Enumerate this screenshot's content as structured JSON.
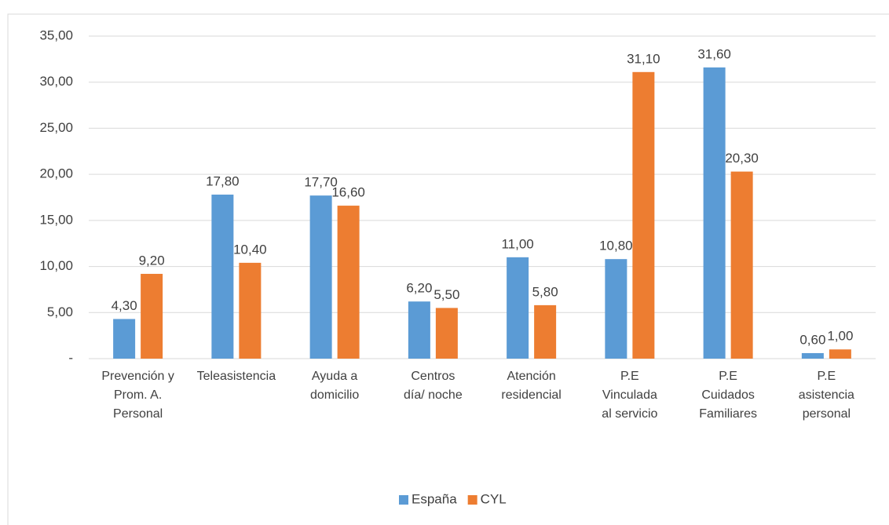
{
  "chart_data": {
    "type": "bar",
    "categories": [
      "Prevención y\nProm. A.\nPersonal",
      "Teleasistencia",
      "Ayuda a\ndomicilio",
      "Centros\ndía/ noche",
      "Atención\nresidencial",
      "P.E\nVinculada\nal servicio",
      "P.E\nCuidados\nFamiliares",
      "P.E\nasistencia\npersonal"
    ],
    "series": [
      {
        "name": "España",
        "color": "#5b9bd5",
        "values": [
          4.3,
          17.8,
          17.7,
          6.2,
          11.0,
          10.8,
          31.6,
          0.6
        ],
        "value_labels": [
          "4,30",
          "17,80",
          "17,70",
          "6,20",
          "11,00",
          "10,80",
          "31,60",
          "0,60"
        ]
      },
      {
        "name": "CYL",
        "color": "#ed7d31",
        "values": [
          9.2,
          10.4,
          16.6,
          5.5,
          5.8,
          31.1,
          20.3,
          1.0
        ],
        "value_labels": [
          "9,20",
          "10,40",
          "16,60",
          "5,50",
          "5,80",
          "31,10",
          "20,30",
          "1,00"
        ]
      }
    ],
    "ylim": [
      0,
      35
    ],
    "yticks": [
      {
        "value": 0,
        "label": "-"
      },
      {
        "value": 5,
        "label": "5,00"
      },
      {
        "value": 10,
        "label": "10,00"
      },
      {
        "value": 15,
        "label": "15,00"
      },
      {
        "value": 20,
        "label": "20,00"
      },
      {
        "value": 25,
        "label": "25,00"
      },
      {
        "value": 30,
        "label": "30,00"
      },
      {
        "value": 35,
        "label": "35,00"
      }
    ],
    "grid": true,
    "legend": "bottom"
  }
}
